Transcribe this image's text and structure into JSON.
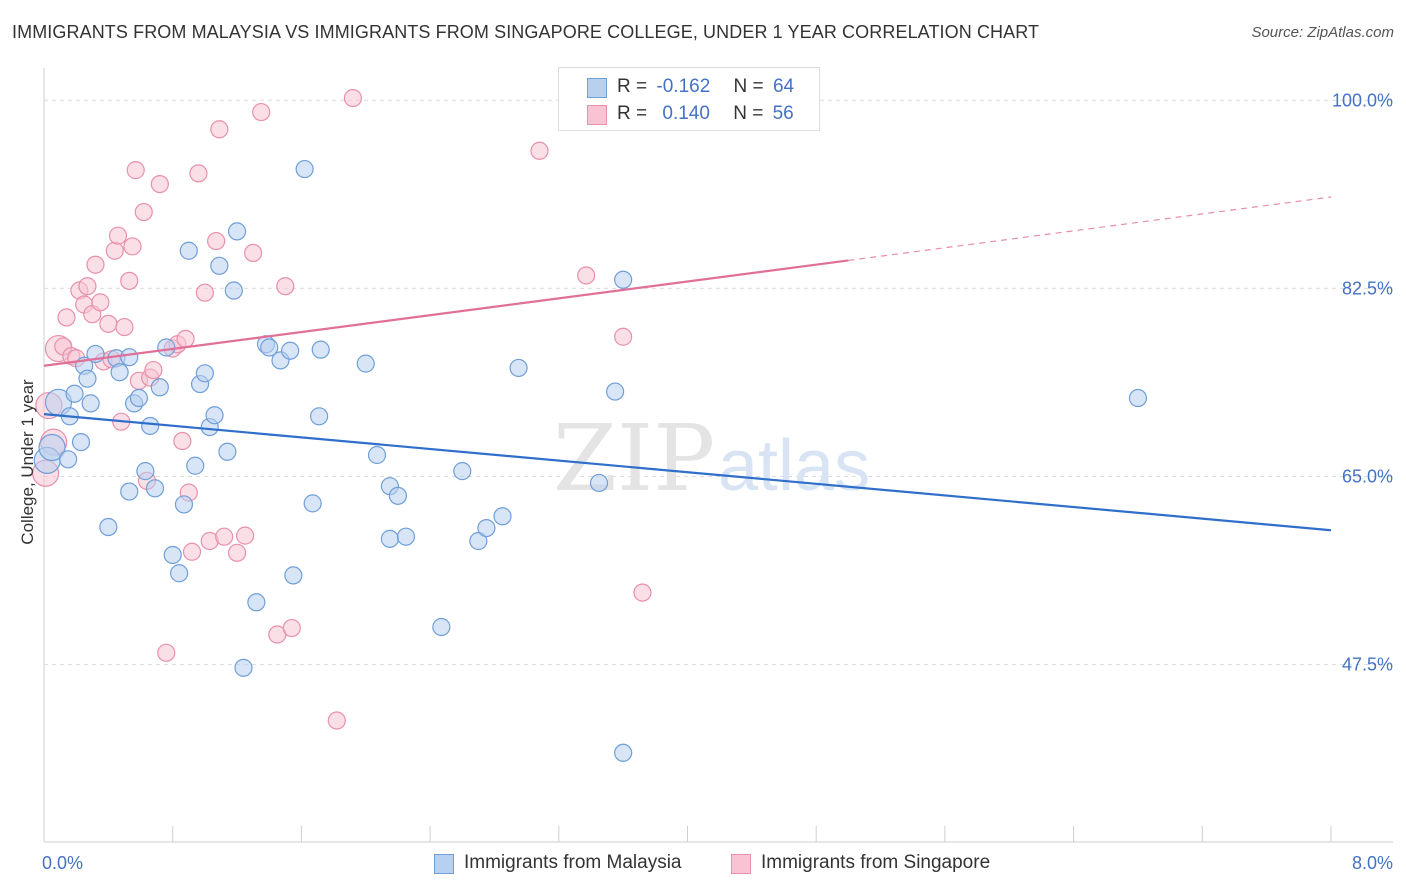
{
  "title": "IMMIGRANTS FROM MALAYSIA VS IMMIGRANTS FROM SINGAPORE COLLEGE, UNDER 1 YEAR CORRELATION CHART",
  "source": "Source: ZipAtlas.com",
  "watermark": {
    "zip": "ZIP",
    "atlas": "atlas"
  },
  "stats": {
    "malaysia": {
      "r_label": "R =",
      "r_value": "-0.162",
      "n_label": "N =",
      "n_value": "64"
    },
    "singapore": {
      "r_label": "R =",
      "r_value": "0.140",
      "n_label": "N =",
      "n_value": "56"
    }
  },
  "legend": {
    "malaysia": "Immigrants from Malaysia",
    "singapore": "Immigrants from Singapore"
  },
  "colors": {
    "malaysia_fill": "#b8d0f0",
    "malaysia_stroke": "#6f9fd8",
    "malaysia_line": "#2f6fcb",
    "singapore_fill": "#f8c4d4",
    "singapore_stroke": "#e890ac",
    "singapore_line": "#e07098",
    "grid": "#dcdcdc",
    "tick": "#4472c4"
  },
  "chart_data": {
    "type": "scatter",
    "title": "IMMIGRANTS FROM MALAYSIA VS IMMIGRANTS FROM SINGAPORE COLLEGE, UNDER 1 YEAR CORRELATION CHART",
    "xlabel": "",
    "ylabel": "College, Under 1 year",
    "xlim": [
      0,
      8
    ],
    "ylim": [
      31,
      103
    ],
    "x_tick_labels": [
      "0.0%",
      "8.0%"
    ],
    "y_ticks": [
      47.5,
      65.0,
      82.5,
      100.0
    ],
    "y_tick_labels": [
      "47.5%",
      "65.0%",
      "82.5%",
      "100.0%"
    ],
    "grid": true,
    "legend_position": "bottom",
    "series": [
      {
        "name": "Immigrants from Malaysia",
        "trend": {
          "x": [
            0,
            8
          ],
          "y": [
            70.8,
            60.0
          ]
        },
        "points": [
          [
            0.02,
            66.5
          ],
          [
            0.05,
            67.7
          ],
          [
            0.09,
            71.9
          ],
          [
            0.15,
            66.6
          ],
          [
            0.16,
            70.6
          ],
          [
            0.19,
            72.7
          ],
          [
            0.23,
            68.2
          ],
          [
            0.25,
            75.3
          ],
          [
            0.27,
            74.1
          ],
          [
            0.29,
            71.8
          ],
          [
            0.32,
            76.4
          ],
          [
            0.4,
            60.3
          ],
          [
            0.45,
            76.0
          ],
          [
            0.47,
            74.7
          ],
          [
            0.53,
            63.6
          ],
          [
            0.53,
            76.1
          ],
          [
            0.56,
            71.8
          ],
          [
            0.59,
            72.3
          ],
          [
            0.63,
            65.5
          ],
          [
            0.66,
            69.7
          ],
          [
            0.69,
            63.9
          ],
          [
            0.72,
            73.3
          ],
          [
            0.76,
            77.0
          ],
          [
            0.8,
            57.7
          ],
          [
            0.84,
            56.0
          ],
          [
            0.87,
            62.4
          ],
          [
            0.9,
            86.0
          ],
          [
            0.94,
            66.0
          ],
          [
            0.97,
            73.6
          ],
          [
            1.0,
            74.6
          ],
          [
            1.03,
            69.6
          ],
          [
            1.06,
            70.7
          ],
          [
            1.09,
            84.6
          ],
          [
            1.14,
            67.3
          ],
          [
            1.18,
            82.3
          ],
          [
            1.2,
            87.8
          ],
          [
            1.24,
            47.2
          ],
          [
            1.32,
            53.3
          ],
          [
            1.38,
            77.3
          ],
          [
            1.4,
            77.0
          ],
          [
            1.47,
            75.8
          ],
          [
            1.53,
            76.7
          ],
          [
            1.55,
            55.8
          ],
          [
            1.62,
            93.6
          ],
          [
            1.67,
            62.5
          ],
          [
            1.71,
            70.6
          ],
          [
            1.72,
            76.8
          ],
          [
            2.0,
            75.5
          ],
          [
            2.07,
            67.0
          ],
          [
            2.15,
            59.2
          ],
          [
            2.15,
            64.1
          ],
          [
            2.2,
            63.2
          ],
          [
            2.25,
            59.4
          ],
          [
            2.47,
            51.0
          ],
          [
            2.6,
            65.5
          ],
          [
            2.7,
            59.0
          ],
          [
            2.75,
            60.2
          ],
          [
            2.85,
            61.3
          ],
          [
            2.95,
            75.1
          ],
          [
            3.45,
            64.4
          ],
          [
            3.55,
            72.9
          ],
          [
            3.6,
            83.3
          ],
          [
            3.6,
            39.3
          ],
          [
            6.8,
            72.3
          ]
        ]
      },
      {
        "name": "Immigrants from Singapore",
        "trend": {
          "x": [
            0,
            5.0
          ],
          "y": [
            75.3,
            85.1
          ]
        },
        "trend_dashed": {
          "x": [
            5.0,
            8
          ],
          "y": [
            85.1,
            91.0
          ]
        },
        "points": [
          [
            0.01,
            65.3
          ],
          [
            0.03,
            71.6
          ],
          [
            0.06,
            68.2
          ],
          [
            0.09,
            76.9
          ],
          [
            0.12,
            77.1
          ],
          [
            0.14,
            79.8
          ],
          [
            0.17,
            76.2
          ],
          [
            0.2,
            76.0
          ],
          [
            0.22,
            82.3
          ],
          [
            0.25,
            81.0
          ],
          [
            0.27,
            82.7
          ],
          [
            0.3,
            80.1
          ],
          [
            0.32,
            84.7
          ],
          [
            0.35,
            81.2
          ],
          [
            0.37,
            75.7
          ],
          [
            0.4,
            79.2
          ],
          [
            0.42,
            75.9
          ],
          [
            0.44,
            86.0
          ],
          [
            0.46,
            87.4
          ],
          [
            0.48,
            70.1
          ],
          [
            0.5,
            78.9
          ],
          [
            0.53,
            83.2
          ],
          [
            0.55,
            86.4
          ],
          [
            0.57,
            93.5
          ],
          [
            0.59,
            73.9
          ],
          [
            0.62,
            89.6
          ],
          [
            0.64,
            64.6
          ],
          [
            0.66,
            74.2
          ],
          [
            0.68,
            74.9
          ],
          [
            0.72,
            92.2
          ],
          [
            0.76,
            48.6
          ],
          [
            0.8,
            76.9
          ],
          [
            0.83,
            77.3
          ],
          [
            0.86,
            68.3
          ],
          [
            0.88,
            77.8
          ],
          [
            0.9,
            63.5
          ],
          [
            0.92,
            58.0
          ],
          [
            0.96,
            93.2
          ],
          [
            1.0,
            82.1
          ],
          [
            1.03,
            59.0
          ],
          [
            1.07,
            86.9
          ],
          [
            1.09,
            97.3
          ],
          [
            1.12,
            59.4
          ],
          [
            1.2,
            57.9
          ],
          [
            1.25,
            59.5
          ],
          [
            1.3,
            85.8
          ],
          [
            1.35,
            98.9
          ],
          [
            1.45,
            50.3
          ],
          [
            1.5,
            82.7
          ],
          [
            1.54,
            50.9
          ],
          [
            1.82,
            42.3
          ],
          [
            1.92,
            100.2
          ],
          [
            3.08,
            95.3
          ],
          [
            3.37,
            83.7
          ],
          [
            3.6,
            78.0
          ],
          [
            3.72,
            54.2
          ]
        ]
      }
    ]
  }
}
